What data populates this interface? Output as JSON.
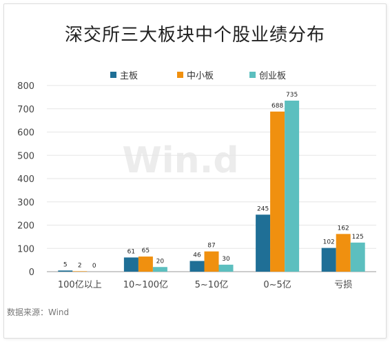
{
  "title": "深交所三大板块中个股业绩分布",
  "source": "数据来源：Wind",
  "watermark": "Win.d",
  "colors": {
    "grid": "#e6e6e6",
    "axis": "#9a9a9a",
    "tick_text": "#444444",
    "watermark": "#ececec"
  },
  "chart_data": {
    "type": "bar",
    "title": "深交所三大板块中个股业绩分布",
    "categories": [
      "100亿以上",
      "10~100亿",
      "5~10亿",
      "0~5亿",
      "亏损"
    ],
    "series": [
      {
        "name": "主板",
        "color": "#1f6f96",
        "values": [
          5,
          61,
          46,
          245,
          102
        ]
      },
      {
        "name": "中小板",
        "color": "#f0900f",
        "values": [
          2,
          65,
          87,
          688,
          162
        ]
      },
      {
        "name": "创业板",
        "color": "#5cbfbf",
        "values": [
          0,
          20,
          30,
          735,
          125
        ]
      }
    ],
    "ylim": [
      0,
      800
    ],
    "yticks": [
      0,
      100,
      200,
      300,
      400,
      500,
      600,
      700,
      800
    ],
    "grid": true,
    "legend_position": "top"
  }
}
